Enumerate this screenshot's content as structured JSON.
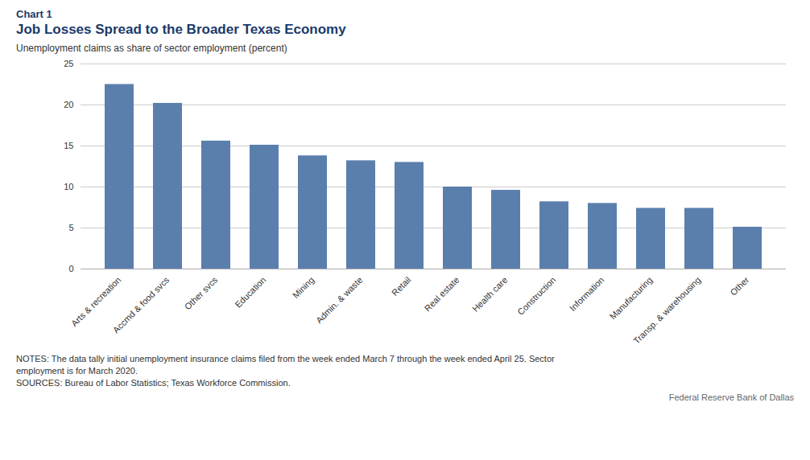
{
  "chart_data": {
    "type": "bar",
    "chart_label": "Chart 1",
    "title": "Job Losses Spread to the Broader Texas Economy",
    "ylabel": "Unemployment claims as share of sector employment (percent)",
    "categories": [
      "Arts & recreation",
      "Accmd & food svcs",
      "Other svcs",
      "Education",
      "Mining",
      "Admin. & waste",
      "Retail",
      "Real estate",
      "Health care",
      "Construction",
      "Information",
      "Manufacturing",
      "Transp. & warehousing",
      "Other"
    ],
    "values": [
      22.5,
      20.2,
      15.6,
      15.1,
      13.8,
      13.2,
      13.0,
      10.0,
      9.6,
      8.2,
      8.0,
      7.4,
      7.4,
      5.1
    ],
    "color": "#5b7fad",
    "ylim": [
      0,
      25
    ],
    "yticks": [
      0,
      5,
      10,
      15,
      20,
      25
    ],
    "grid": true,
    "notes": [
      "NOTES: The data tally initial unemployment insurance claims filed from the week ended March 7 through the week ended April 25. Sector",
      "employment is for March 2020.",
      "SOURCES: Bureau of Labor Statistics; Texas Workforce Commission."
    ],
    "attribution": "Federal Reserve Bank of Dallas",
    "title_color": "#1a3a6b",
    "notes_color": "#333333",
    "attribution_color": "#666666"
  }
}
